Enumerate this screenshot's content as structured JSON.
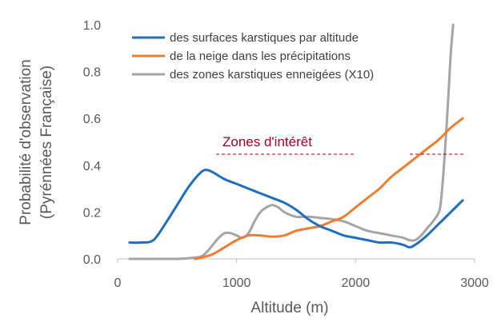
{
  "chart_data": {
    "type": "line",
    "title": "",
    "xlabel": "Altitude (m)",
    "ylabel_lines": [
      "Probabilité d'observation",
      "(Pyrénnées Française)"
    ],
    "xlim": [
      0,
      3000
    ],
    "ylim": [
      0,
      1.0
    ],
    "x_ticks": [
      0,
      1000,
      2000,
      3000
    ],
    "x_tick_labels": [
      "0",
      "1000",
      "2000",
      "3000"
    ],
    "y_ticks": [
      0,
      0.2,
      0.4,
      0.6,
      0.8,
      1.0
    ],
    "y_tick_labels": [
      "0.0",
      "0.2",
      "0.4",
      "0.6",
      "0.8",
      "1.0"
    ],
    "grid": false,
    "legend_position": "top",
    "series": [
      {
        "name": "des surfaces karstiques par altitude",
        "color": "#1f6fbf",
        "x": [
          100,
          200,
          300,
          400,
          500,
          600,
          700,
          750,
          800,
          900,
          1000,
          1100,
          1200,
          1300,
          1400,
          1500,
          1600,
          1700,
          1800,
          1900,
          2000,
          2100,
          2200,
          2300,
          2400,
          2450,
          2500,
          2600,
          2700,
          2800,
          2900
        ],
        "values": [
          0.07,
          0.07,
          0.08,
          0.15,
          0.23,
          0.31,
          0.37,
          0.38,
          0.37,
          0.34,
          0.32,
          0.3,
          0.28,
          0.26,
          0.24,
          0.21,
          0.17,
          0.14,
          0.12,
          0.1,
          0.09,
          0.08,
          0.07,
          0.07,
          0.06,
          0.05,
          0.06,
          0.1,
          0.15,
          0.2,
          0.25
        ]
      },
      {
        "name": "de la neige dans les précipitations",
        "color": "#ed7d31",
        "x": [
          650,
          700,
          800,
          900,
          1000,
          1100,
          1200,
          1300,
          1400,
          1500,
          1600,
          1700,
          1800,
          1900,
          2000,
          2100,
          2200,
          2300,
          2400,
          2500,
          2600,
          2700,
          2800,
          2900
        ],
        "values": [
          0.0,
          0.005,
          0.02,
          0.05,
          0.08,
          0.1,
          0.1,
          0.095,
          0.1,
          0.12,
          0.13,
          0.14,
          0.16,
          0.18,
          0.22,
          0.26,
          0.3,
          0.35,
          0.39,
          0.43,
          0.47,
          0.51,
          0.56,
          0.6
        ]
      },
      {
        "name": "des zones karstiques enneigées (X10)",
        "color": "#a5a5a5",
        "x": [
          100,
          300,
          500,
          600,
          700,
          750,
          800,
          850,
          900,
          950,
          1000,
          1050,
          1100,
          1150,
          1200,
          1250,
          1300,
          1350,
          1400,
          1500,
          1600,
          1700,
          1800,
          1900,
          2000,
          2100,
          2200,
          2300,
          2400,
          2450,
          2500,
          2550,
          2600,
          2650,
          2700,
          2720,
          2750,
          2780,
          2800,
          2820
        ],
        "values": [
          0.0,
          0.0,
          0.0,
          0.003,
          0.01,
          0.03,
          0.06,
          0.09,
          0.11,
          0.11,
          0.1,
          0.09,
          0.11,
          0.16,
          0.2,
          0.22,
          0.23,
          0.22,
          0.2,
          0.18,
          0.18,
          0.175,
          0.17,
          0.16,
          0.14,
          0.12,
          0.11,
          0.1,
          0.09,
          0.08,
          0.08,
          0.1,
          0.13,
          0.16,
          0.2,
          0.26,
          0.45,
          0.7,
          0.88,
          1.0
        ]
      }
    ],
    "annotations": [
      {
        "text": "Zones d'intérêt",
        "color": "#a50021"
      }
    ]
  }
}
